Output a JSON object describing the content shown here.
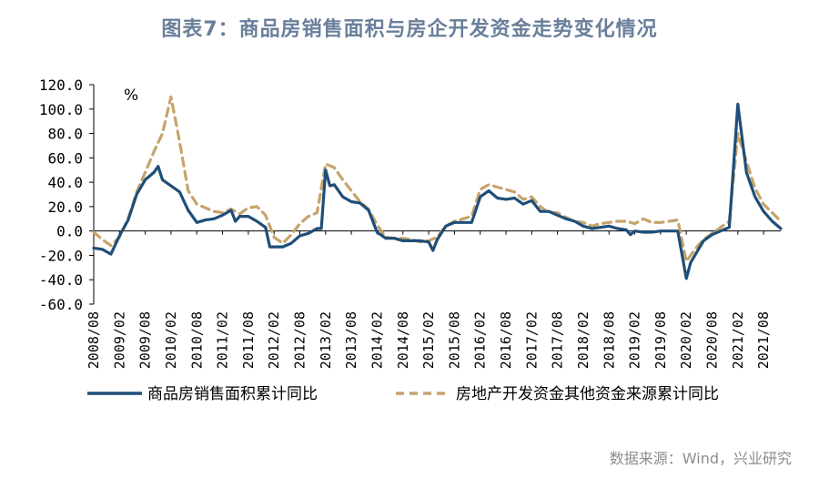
{
  "title": "图表7：商品房销售面积与房企开发资金走势变化情况",
  "source": "数据来源：Wind，兴业研究",
  "colors": {
    "title": "#6a7f9a",
    "series1": "#1f4e79",
    "series2": "#c6a46b",
    "axis": "#000000"
  },
  "chart_data": {
    "type": "line",
    "ylabel": "%",
    "ylim": [
      -60,
      120
    ],
    "yticks": [
      "120.0",
      "100.0",
      "80.0",
      "60.0",
      "40.0",
      "20.0",
      "0.0",
      "-20.0",
      "-40.0",
      "-60.0"
    ],
    "x_start": "2008/08",
    "x_end": "2021/12",
    "xticks": [
      "2008/08",
      "2009/02",
      "2009/08",
      "2010/02",
      "2010/08",
      "2011/02",
      "2011/08",
      "2012/02",
      "2012/08",
      "2013/02",
      "2013/08",
      "2014/02",
      "2014/08",
      "2015/02",
      "2015/08",
      "2016/02",
      "2016/08",
      "2017/02",
      "2017/08",
      "2018/02",
      "2018/08",
      "2019/02",
      "2019/08",
      "2020/02",
      "2020/08",
      "2021/02",
      "2021/08"
    ],
    "legend_position": "bottom",
    "series": [
      {
        "name": "商品房销售面积累计同比",
        "style": "solid",
        "points": [
          [
            "2008/08",
            -14
          ],
          [
            "2008/10",
            -15
          ],
          [
            "2008/12",
            -19
          ],
          [
            "2009/02",
            -4
          ],
          [
            "2009/04",
            9
          ],
          [
            "2009/06",
            30
          ],
          [
            "2009/08",
            42
          ],
          [
            "2009/10",
            48
          ],
          [
            "2009/11",
            53
          ],
          [
            "2009/12",
            42
          ],
          [
            "2010/02",
            37
          ],
          [
            "2010/04",
            32
          ],
          [
            "2010/06",
            17
          ],
          [
            "2010/08",
            7
          ],
          [
            "2010/10",
            9
          ],
          [
            "2010/12",
            10
          ],
          [
            "2011/02",
            13
          ],
          [
            "2011/04",
            17
          ],
          [
            "2011/05",
            8
          ],
          [
            "2011/06",
            12
          ],
          [
            "2011/08",
            12
          ],
          [
            "2011/10",
            8
          ],
          [
            "2011/12",
            3
          ],
          [
            "2012/01",
            -13
          ],
          [
            "2012/02",
            -13
          ],
          [
            "2012/04",
            -13
          ],
          [
            "2012/06",
            -10
          ],
          [
            "2012/08",
            -4
          ],
          [
            "2012/10",
            -2
          ],
          [
            "2012/12",
            2
          ],
          [
            "2013/01",
            2
          ],
          [
            "2013/02",
            50
          ],
          [
            "2013/03",
            37
          ],
          [
            "2013/04",
            38
          ],
          [
            "2013/06",
            28
          ],
          [
            "2013/08",
            24
          ],
          [
            "2013/10",
            23
          ],
          [
            "2013/12",
            17
          ],
          [
            "2014/02",
            -1
          ],
          [
            "2014/04",
            -6
          ],
          [
            "2014/06",
            -6
          ],
          [
            "2014/08",
            -8
          ],
          [
            "2014/10",
            -8
          ],
          [
            "2014/12",
            -8
          ],
          [
            "2015/02",
            -9
          ],
          [
            "2015/03",
            -16
          ],
          [
            "2015/04",
            -7
          ],
          [
            "2015/06",
            4
          ],
          [
            "2015/08",
            7
          ],
          [
            "2015/10",
            7
          ],
          [
            "2015/12",
            7
          ],
          [
            "2016/02",
            28
          ],
          [
            "2016/04",
            33
          ],
          [
            "2016/06",
            27
          ],
          [
            "2016/08",
            26
          ],
          [
            "2016/10",
            27
          ],
          [
            "2016/12",
            22
          ],
          [
            "2017/02",
            25
          ],
          [
            "2017/04",
            16
          ],
          [
            "2017/06",
            16
          ],
          [
            "2017/08",
            13
          ],
          [
            "2017/10",
            10
          ],
          [
            "2017/12",
            8
          ],
          [
            "2018/02",
            4
          ],
          [
            "2018/04",
            2
          ],
          [
            "2018/06",
            3
          ],
          [
            "2018/08",
            4
          ],
          [
            "2018/10",
            2
          ],
          [
            "2018/12",
            1
          ],
          [
            "2019/01",
            -3
          ],
          [
            "2019/02",
            0
          ],
          [
            "2019/04",
            -1
          ],
          [
            "2019/06",
            -1
          ],
          [
            "2019/08",
            0
          ],
          [
            "2019/10",
            0
          ],
          [
            "2019/12",
            0
          ],
          [
            "2020/02",
            -39
          ],
          [
            "2020/03",
            -26
          ],
          [
            "2020/04",
            -20
          ],
          [
            "2020/06",
            -8
          ],
          [
            "2020/08",
            -3
          ],
          [
            "2020/10",
            0
          ],
          [
            "2020/12",
            3
          ],
          [
            "2021/02",
            104
          ],
          [
            "2021/04",
            48
          ],
          [
            "2021/06",
            28
          ],
          [
            "2021/08",
            16
          ],
          [
            "2021/10",
            8
          ],
          [
            "2021/12",
            2
          ]
        ]
      },
      {
        "name": "房地产开发资金其他资金来源累计同比",
        "style": "dashed",
        "points": [
          [
            "2008/08",
            -1
          ],
          [
            "2008/10",
            -7
          ],
          [
            "2008/12",
            -12
          ],
          [
            "2009/02",
            -5
          ],
          [
            "2009/04",
            10
          ],
          [
            "2009/06",
            32
          ],
          [
            "2009/08",
            48
          ],
          [
            "2009/10",
            65
          ],
          [
            "2009/12",
            80
          ],
          [
            "2010/02",
            110
          ],
          [
            "2010/04",
            73
          ],
          [
            "2010/06",
            33
          ],
          [
            "2010/08",
            22
          ],
          [
            "2010/10",
            19
          ],
          [
            "2010/12",
            16
          ],
          [
            "2011/02",
            15
          ],
          [
            "2011/04",
            18
          ],
          [
            "2011/06",
            14
          ],
          [
            "2011/08",
            19
          ],
          [
            "2011/10",
            20
          ],
          [
            "2011/12",
            13
          ],
          [
            "2012/02",
            -5
          ],
          [
            "2012/04",
            -10
          ],
          [
            "2012/06",
            -3
          ],
          [
            "2012/08",
            6
          ],
          [
            "2012/10",
            12
          ],
          [
            "2012/12",
            15
          ],
          [
            "2013/02",
            55
          ],
          [
            "2013/04",
            52
          ],
          [
            "2013/06",
            42
          ],
          [
            "2013/08",
            33
          ],
          [
            "2013/10",
            24
          ],
          [
            "2013/12",
            18
          ],
          [
            "2014/02",
            5
          ],
          [
            "2014/04",
            -5
          ],
          [
            "2014/06",
            -6
          ],
          [
            "2014/08",
            -6
          ],
          [
            "2014/10",
            -7
          ],
          [
            "2014/12",
            -9
          ],
          [
            "2015/02",
            -8
          ],
          [
            "2015/04",
            -5
          ],
          [
            "2015/06",
            4
          ],
          [
            "2015/08",
            8
          ],
          [
            "2015/10",
            10
          ],
          [
            "2015/12",
            12
          ],
          [
            "2016/02",
            34
          ],
          [
            "2016/04",
            38
          ],
          [
            "2016/06",
            36
          ],
          [
            "2016/08",
            34
          ],
          [
            "2016/10",
            32
          ],
          [
            "2016/12",
            26
          ],
          [
            "2017/02",
            28
          ],
          [
            "2017/04",
            20
          ],
          [
            "2017/06",
            15
          ],
          [
            "2017/08",
            15
          ],
          [
            "2017/10",
            11
          ],
          [
            "2017/12",
            8
          ],
          [
            "2018/02",
            7
          ],
          [
            "2018/04",
            4
          ],
          [
            "2018/06",
            6
          ],
          [
            "2018/08",
            7
          ],
          [
            "2018/10",
            8
          ],
          [
            "2018/12",
            8
          ],
          [
            "2019/02",
            6
          ],
          [
            "2019/04",
            10
          ],
          [
            "2019/06",
            7
          ],
          [
            "2019/08",
            7
          ],
          [
            "2019/10",
            8
          ],
          [
            "2019/12",
            9
          ],
          [
            "2020/02",
            -25
          ],
          [
            "2020/04",
            -15
          ],
          [
            "2020/06",
            -7
          ],
          [
            "2020/08",
            -2
          ],
          [
            "2020/10",
            3
          ],
          [
            "2020/12",
            8
          ],
          [
            "2021/02",
            80
          ],
          [
            "2021/04",
            57
          ],
          [
            "2021/06",
            35
          ],
          [
            "2021/08",
            22
          ],
          [
            "2021/10",
            15
          ],
          [
            "2021/12",
            8
          ]
        ]
      }
    ]
  }
}
